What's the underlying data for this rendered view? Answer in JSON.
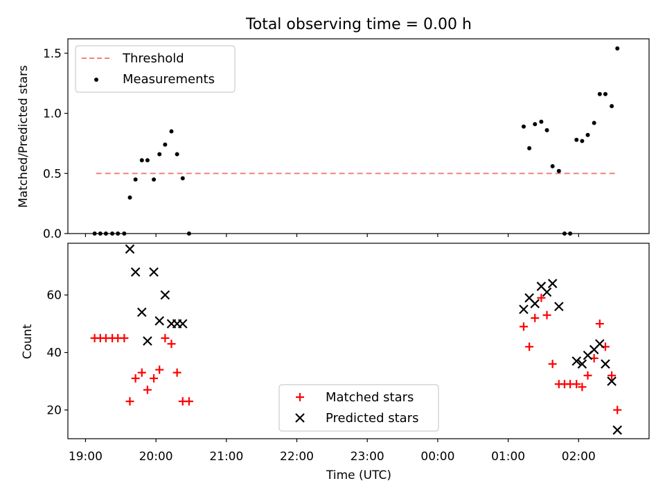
{
  "title": "Total observing time = 0.00 h",
  "colors": {
    "threshold": "#f08080",
    "measurement": "#000000",
    "matched": "#ff0000",
    "predicted": "#000000"
  },
  "chart_data": [
    {
      "type": "scatter",
      "ylabel": "Matched/Predicted stars",
      "ylim": [
        0,
        1.62
      ],
      "yticks": [
        "0.0",
        "0.5",
        "1.0",
        "1.5"
      ],
      "ytick_values": [
        0,
        0.5,
        1.0,
        1.5
      ],
      "xlim_hours": [
        18.75,
        27.0
      ],
      "legend": {
        "position": "top-left",
        "entries": [
          "Threshold",
          "Measurements"
        ]
      },
      "threshold": {
        "name": "Threshold",
        "value": 0.5,
        "x_range": [
          19.15,
          26.52
        ]
      },
      "series": [
        {
          "name": "Measurements",
          "points": [
            [
              19.13,
              0
            ],
            [
              19.21,
              0
            ],
            [
              19.29,
              0
            ],
            [
              19.38,
              0
            ],
            [
              19.46,
              0
            ],
            [
              19.55,
              0
            ],
            [
              19.63,
              0.3
            ],
            [
              19.71,
              0.45
            ],
            [
              19.8,
              0.61
            ],
            [
              19.88,
              0.61
            ],
            [
              19.97,
              0.45
            ],
            [
              20.05,
              0.66
            ],
            [
              20.13,
              0.74
            ],
            [
              20.22,
              0.85
            ],
            [
              20.3,
              0.66
            ],
            [
              20.38,
              0.46
            ],
            [
              20.47,
              0
            ],
            [
              25.22,
              0.89
            ],
            [
              25.3,
              0.71
            ],
            [
              25.38,
              0.91
            ],
            [
              25.47,
              0.93
            ],
            [
              25.55,
              0.86
            ],
            [
              25.63,
              0.56
            ],
            [
              25.72,
              0.52
            ],
            [
              25.8,
              0
            ],
            [
              25.88,
              0
            ],
            [
              25.97,
              0.78
            ],
            [
              26.05,
              0.77
            ],
            [
              26.13,
              0.82
            ],
            [
              26.22,
              0.92
            ],
            [
              26.3,
              1.16
            ],
            [
              26.38,
              1.16
            ],
            [
              26.47,
              1.06
            ],
            [
              26.55,
              1.54
            ]
          ]
        }
      ]
    },
    {
      "type": "scatter",
      "ylabel": "Count",
      "xlabel": "Time (UTC)",
      "ylim": [
        10,
        78
      ],
      "yticks": [
        "20",
        "40",
        "60"
      ],
      "ytick_values": [
        20,
        40,
        60
      ],
      "xticks": [
        "19:00",
        "20:00",
        "21:00",
        "22:00",
        "23:00",
        "00:00",
        "01:00",
        "02:00"
      ],
      "xtick_hours": [
        19,
        20,
        21,
        22,
        23,
        24,
        25,
        26
      ],
      "xlim_hours": [
        18.75,
        27.0
      ],
      "legend": {
        "position": "bottom-center",
        "entries": [
          "Matched stars",
          "Predicted stars"
        ]
      },
      "series": [
        {
          "name": "Matched stars",
          "points": [
            [
              19.13,
              45
            ],
            [
              19.21,
              45
            ],
            [
              19.29,
              45
            ],
            [
              19.38,
              45
            ],
            [
              19.46,
              45
            ],
            [
              19.55,
              45
            ],
            [
              19.63,
              23
            ],
            [
              19.71,
              31
            ],
            [
              19.8,
              33
            ],
            [
              19.88,
              27
            ],
            [
              19.97,
              31
            ],
            [
              20.05,
              34
            ],
            [
              20.13,
              45
            ],
            [
              20.22,
              43
            ],
            [
              20.3,
              33
            ],
            [
              20.38,
              23
            ],
            [
              20.47,
              23
            ],
            [
              25.22,
              49
            ],
            [
              25.3,
              42
            ],
            [
              25.38,
              52
            ],
            [
              25.47,
              59
            ],
            [
              25.55,
              53
            ],
            [
              25.63,
              36
            ],
            [
              25.72,
              29
            ],
            [
              25.8,
              29
            ],
            [
              25.88,
              29
            ],
            [
              25.97,
              29
            ],
            [
              26.05,
              28
            ],
            [
              26.13,
              32
            ],
            [
              26.22,
              38
            ],
            [
              26.3,
              50
            ],
            [
              26.38,
              42
            ],
            [
              26.47,
              32
            ],
            [
              26.55,
              20
            ]
          ]
        },
        {
          "name": "Predicted stars",
          "points": [
            [
              19.63,
              76
            ],
            [
              19.71,
              68
            ],
            [
              19.8,
              54
            ],
            [
              19.88,
              44
            ],
            [
              19.97,
              68
            ],
            [
              20.05,
              51
            ],
            [
              20.13,
              60
            ],
            [
              20.22,
              50
            ],
            [
              20.3,
              50
            ],
            [
              20.38,
              50
            ],
            [
              25.22,
              55
            ],
            [
              25.3,
              59
            ],
            [
              25.38,
              57
            ],
            [
              25.47,
              63
            ],
            [
              25.55,
              61
            ],
            [
              25.63,
              64
            ],
            [
              25.72,
              56
            ],
            [
              25.97,
              37
            ],
            [
              26.05,
              36
            ],
            [
              26.13,
              39
            ],
            [
              26.22,
              41
            ],
            [
              26.3,
              43
            ],
            [
              26.38,
              36
            ],
            [
              26.47,
              30
            ],
            [
              26.55,
              13
            ]
          ]
        }
      ]
    }
  ]
}
